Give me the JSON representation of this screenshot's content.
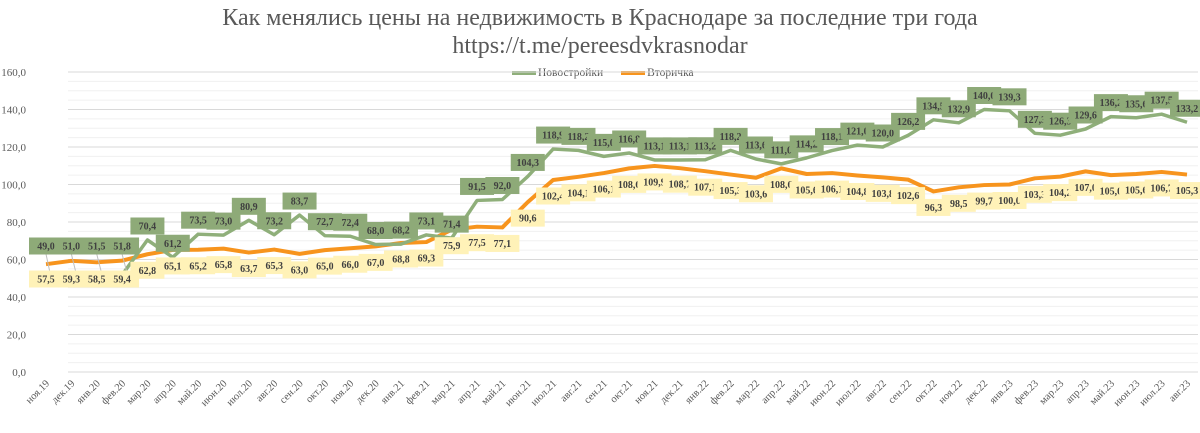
{
  "title": {
    "line1": "Как менялись цены на недвижимость в Краснодаре за последние  три года",
    "line2": "https://t.me/pereesdvkrasnodar"
  },
  "legend": {
    "items": [
      {
        "label": "Новостройки",
        "color": "#8faf7a"
      },
      {
        "label": "Вторичка",
        "color": "#f7941d"
      }
    ]
  },
  "chart_data": {
    "type": "line",
    "title": "Как менялись цены на недвижимость в Краснодаре за последние  три года",
    "subtitle": "https://t.me/pereesdvkrasnodar",
    "xlabel": "",
    "ylabel": "",
    "ylim": [
      0,
      160
    ],
    "yticks": [
      "0,0",
      "20,0",
      "40,0",
      "60,0",
      "80,0",
      "100,0",
      "120,0",
      "140,0",
      "160,0"
    ],
    "grid": true,
    "legend_position": "top",
    "categories": [
      "ноя.19",
      "дек.19",
      "янв.20",
      "фев.20",
      "мар.20",
      "апр.20",
      "май.20",
      "июн.20",
      "июл.20",
      "авг.20",
      "сен.20",
      "окт.20",
      "ноя.20",
      "дек.20",
      "янв.21",
      "фев.21",
      "мар.21",
      "апр.21",
      "май.21",
      "июн.21",
      "июл.21",
      "авг.21",
      "сен.21",
      "окт.21",
      "ноя.21",
      "дек.21",
      "янв.22",
      "фев.22",
      "мар.22",
      "апр.22",
      "май.22",
      "июн.22",
      "июл.22",
      "авг.22",
      "сен.22",
      "окт.22",
      "ноя.22",
      "дек.22",
      "янв.23",
      "фев.23",
      "мар.23",
      "апр.23",
      "май.23",
      "июн.23",
      "июл.23",
      "авг.23"
    ],
    "series": [
      {
        "name": "Новостройки",
        "color": "#8faf7a",
        "values": [
          49.0,
          51.0,
          51.5,
          51.8,
          70.4,
          61.2,
          73.5,
          73.0,
          80.9,
          73.2,
          83.7,
          72.7,
          72.4,
          68.0,
          68.2,
          73.1,
          71.4,
          91.5,
          92.0,
          104.3,
          118.9,
          118.2,
          115.0,
          116.8,
          113.1,
          113.1,
          113.2,
          118.2,
          113.6,
          111.0,
          114.2,
          118.1,
          121.0,
          120.0,
          126.2,
          134.5,
          132.9,
          140.0,
          139.3,
          127.3,
          126.3,
          129.6,
          136.2,
          135.6,
          137.5,
          133.2
        ],
        "labels": [
          "49,0",
          "51,0",
          "51,5",
          "51,8",
          "70,4",
          "61,2",
          "73,5",
          "73,0",
          "80,9",
          "73,2",
          "83,7",
          "72,7",
          "72,4",
          "68,0",
          "68,2",
          "73,1",
          "71,4",
          "91,5",
          "92,0",
          "104,3",
          "118,9",
          "118,2",
          "115,0",
          "116,8",
          "113,1",
          "113,1",
          "113,2",
          "118,2",
          "113,6",
          "111,0",
          "114,2",
          "118,1",
          "121,0",
          "120,0",
          "126,2",
          "134,5",
          "132,9",
          "140,0",
          "139,3",
          "127,3",
          "126,3",
          "129,6",
          "136,2",
          "135,6",
          "137,5",
          "133,2"
        ]
      },
      {
        "name": "Вторичка",
        "color": "#f7941d",
        "values": [
          57.5,
          59.3,
          58.5,
          59.4,
          62.8,
          65.1,
          65.2,
          65.8,
          63.7,
          65.3,
          63.0,
          65.0,
          66.0,
          67.0,
          68.8,
          69.3,
          75.9,
          77.5,
          77.1,
          90.6,
          102.4,
          104.1,
          106.1,
          108.6,
          109.9,
          108.7,
          107.1,
          105.3,
          103.6,
          108.6,
          105.6,
          106.1,
          104.8,
          103.8,
          102.6,
          96.3,
          98.5,
          99.7,
          100.0,
          103.3,
          104.2,
          107.0,
          105.0,
          105.6,
          106.7,
          105.3
        ],
        "labels": [
          "57,5",
          "59,3",
          "58,5",
          "59,4",
          "62,8",
          "65,1",
          "65,2",
          "65,8",
          "63,7",
          "65,3",
          "63,0",
          "65,0",
          "66,0",
          "67,0",
          "68,8",
          "69,3",
          "75,9",
          "77,5",
          "77,1",
          "90,6",
          "102,4",
          "104,1",
          "106,1",
          "108,6",
          "109,9",
          "108,7",
          "107,1",
          "105,3",
          "103,6",
          "108,6",
          "105,6",
          "106,1",
          "104,8",
          "103,8",
          "102,6",
          "96,3",
          "98,5",
          "99,7",
          "100,0",
          "103,3",
          "104,2",
          "107,0",
          "105,0",
          "105,6",
          "106,7",
          "105,3"
        ]
      }
    ]
  }
}
